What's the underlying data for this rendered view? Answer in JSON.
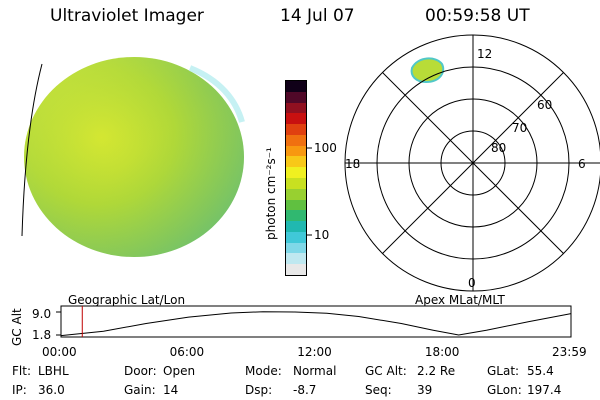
{
  "header": {
    "instrument": "Ultraviolet Imager",
    "date": "14 Jul 07",
    "time": "00:59:58 UT"
  },
  "colorbar": {
    "unit_label": "photon cm⁻²s⁻¹",
    "ticks": [
      "100",
      "10"
    ],
    "colors": [
      "#e8e8e8",
      "#bfe8f0",
      "#7fd8e8",
      "#40c8d8",
      "#20b8b0",
      "#30b870",
      "#60c040",
      "#98d030",
      "#c8e020",
      "#f0f020",
      "#f8c818",
      "#f89810",
      "#f07010",
      "#e04010",
      "#c81010",
      "#901020",
      "#500828",
      "#100018"
    ]
  },
  "polar_plot": {
    "labels_top": "12",
    "labels_bottom": "0",
    "labels_left": "18",
    "labels_right": "6",
    "ring_labels": [
      "60",
      "70",
      "80"
    ]
  },
  "timeline": {
    "left_label": "Geographic Lat/Lon",
    "right_label": "Apex MLat/MLT",
    "y_axis_label": "GC Alt",
    "y_ticks": [
      "9.0",
      "1.8"
    ],
    "x_ticks": [
      "00:00",
      "06:00",
      "12:00",
      "18:00",
      "23:59"
    ],
    "marker_time": "00:59:58"
  },
  "chart_data": {
    "type": "line",
    "title": "",
    "xlabel": "",
    "ylabel": "GC Alt",
    "x_hours": [
      0,
      2,
      4,
      6,
      8,
      9.5,
      11,
      12.5,
      14,
      16,
      17.5,
      18.7,
      20,
      22,
      23.98
    ],
    "y_re": [
      1.6,
      3.0,
      5.4,
      7.4,
      8.7,
      9.1,
      9.0,
      8.6,
      7.6,
      5.4,
      3.3,
      1.8,
      3.3,
      6.0,
      8.5
    ],
    "xlim": [
      0,
      23.98
    ],
    "ylim": [
      1.8,
      9.0
    ],
    "current_marker_hours": 1.0
  },
  "info": {
    "rows": [
      [
        {
          "label": "Flt:",
          "value": "LBHL"
        },
        {
          "label": "Door:",
          "value": "Open"
        },
        {
          "label": "Mode:",
          "value": "Normal"
        },
        {
          "label": "GC Alt:",
          "value": "2.2 Re"
        },
        {
          "label": "GLat:",
          "value": "55.4"
        }
      ],
      [
        {
          "label": "IP:",
          "value": "36.0"
        },
        {
          "label": "Gain:",
          "value": "14"
        },
        {
          "label": "Dsp:",
          "value": "-8.7"
        },
        {
          "label": "Seq:",
          "value": "39"
        },
        {
          "label": "GLon:",
          "value": "197.4"
        }
      ]
    ]
  }
}
